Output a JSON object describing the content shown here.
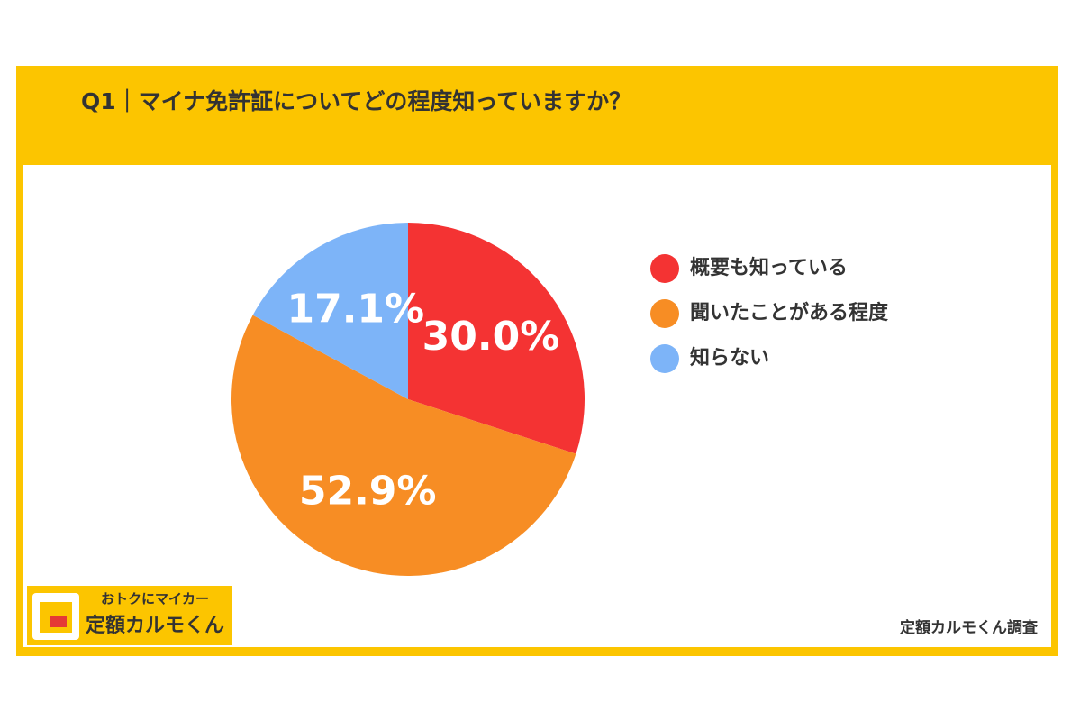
{
  "chart_data": {
    "type": "pie",
    "title": "Q1｜マイナ免許証についてどの程度知っていますか？",
    "categories": [
      "概要も知っている",
      "聞いたことがある程度",
      "知らない"
    ],
    "values": [
      30.0,
      52.9,
      17.1
    ],
    "value_labels": [
      "30.0%",
      "52.9%",
      "17.1%"
    ],
    "colors": [
      "#f43333",
      "#f78d24",
      "#7db4f8"
    ]
  },
  "logo": {
    "tagline": "おトクにマイカー",
    "name": "定額カルモくん"
  },
  "source": "定額カルモくん調査"
}
